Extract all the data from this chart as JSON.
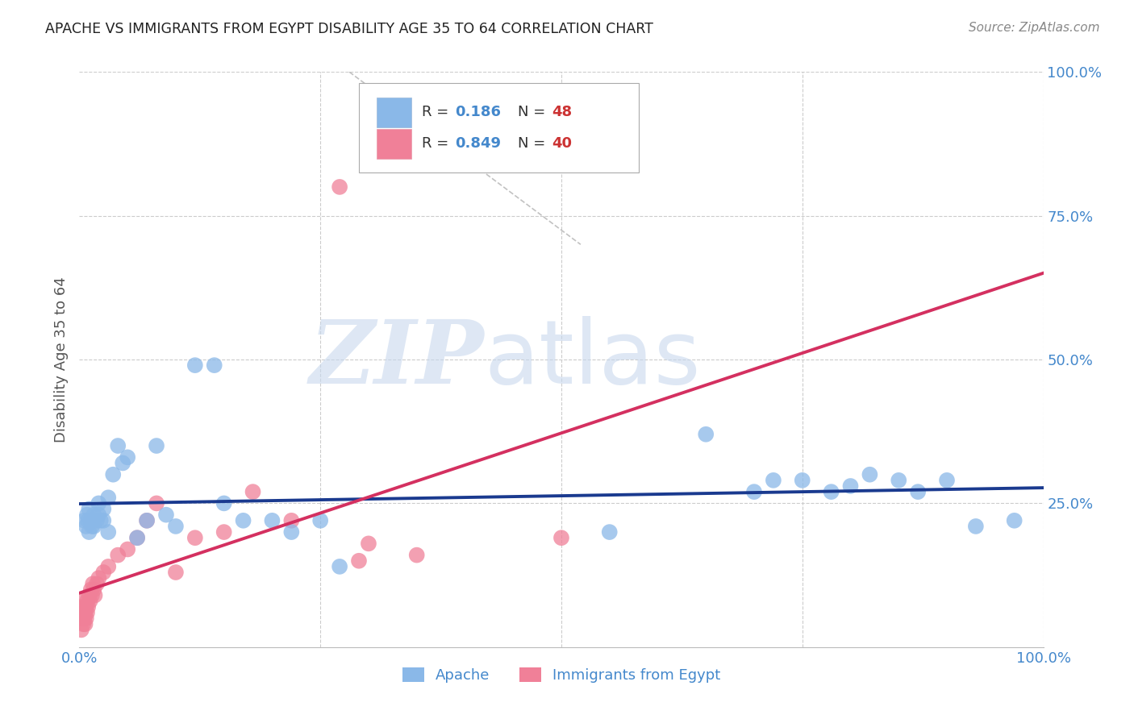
{
  "title": "APACHE VS IMMIGRANTS FROM EGYPT DISABILITY AGE 35 TO 64 CORRELATION CHART",
  "source": "Source: ZipAtlas.com",
  "ylabel": "Disability Age 35 to 64",
  "watermark_zip": "ZIP",
  "watermark_atlas": "atlas",
  "xlim": [
    0.0,
    1.0
  ],
  "ylim": [
    0.0,
    1.0
  ],
  "apache_color": "#8ab8e8",
  "egypt_color": "#f08098",
  "apache_line_color": "#1a3a8f",
  "egypt_line_color": "#d43060",
  "apache_R": "0.186",
  "apache_N": "48",
  "egypt_R": "0.849",
  "egypt_N": "40",
  "apache_x": [
    0.005,
    0.007,
    0.008,
    0.009,
    0.01,
    0.01,
    0.012,
    0.013,
    0.015,
    0.015,
    0.018,
    0.02,
    0.02,
    0.022,
    0.025,
    0.025,
    0.03,
    0.03,
    0.035,
    0.04,
    0.045,
    0.05,
    0.06,
    0.07,
    0.08,
    0.09,
    0.1,
    0.12,
    0.14,
    0.15,
    0.17,
    0.2,
    0.22,
    0.25,
    0.27,
    0.55,
    0.65,
    0.7,
    0.72,
    0.75,
    0.78,
    0.8,
    0.82,
    0.85,
    0.87,
    0.9,
    0.93,
    0.97
  ],
  "apache_y": [
    0.22,
    0.21,
    0.23,
    0.22,
    0.2,
    0.24,
    0.22,
    0.21,
    0.23,
    0.21,
    0.22,
    0.23,
    0.25,
    0.22,
    0.24,
    0.22,
    0.26,
    0.2,
    0.3,
    0.35,
    0.32,
    0.33,
    0.19,
    0.22,
    0.35,
    0.23,
    0.21,
    0.49,
    0.49,
    0.25,
    0.22,
    0.22,
    0.2,
    0.22,
    0.14,
    0.2,
    0.37,
    0.27,
    0.29,
    0.29,
    0.27,
    0.28,
    0.3,
    0.29,
    0.27,
    0.29,
    0.21,
    0.22
  ],
  "egypt_x": [
    0.002,
    0.003,
    0.003,
    0.004,
    0.004,
    0.005,
    0.005,
    0.006,
    0.006,
    0.007,
    0.007,
    0.008,
    0.008,
    0.009,
    0.01,
    0.011,
    0.012,
    0.013,
    0.014,
    0.015,
    0.016,
    0.018,
    0.02,
    0.025,
    0.03,
    0.04,
    0.05,
    0.06,
    0.07,
    0.08,
    0.1,
    0.12,
    0.15,
    0.18,
    0.22,
    0.27,
    0.29,
    0.3,
    0.35,
    0.5
  ],
  "egypt_y": [
    0.03,
    0.05,
    0.07,
    0.04,
    0.06,
    0.05,
    0.08,
    0.04,
    0.06,
    0.05,
    0.07,
    0.06,
    0.08,
    0.07,
    0.09,
    0.08,
    0.1,
    0.09,
    0.11,
    0.1,
    0.09,
    0.11,
    0.12,
    0.13,
    0.14,
    0.16,
    0.17,
    0.19,
    0.22,
    0.25,
    0.13,
    0.19,
    0.2,
    0.27,
    0.22,
    0.8,
    0.15,
    0.18,
    0.16,
    0.19
  ],
  "bg_color": "#ffffff",
  "grid_color": "#cccccc",
  "title_color": "#222222",
  "tick_color": "#4488cc",
  "legend_r_color": "#4488cc",
  "legend_n_color": "#cc3333"
}
